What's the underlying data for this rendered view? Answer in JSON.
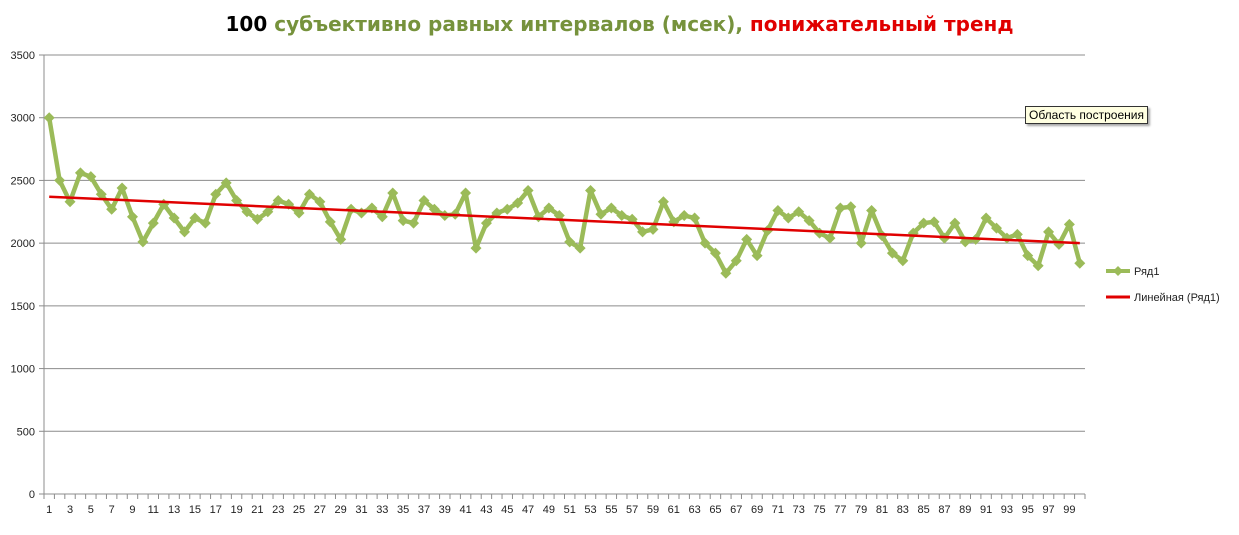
{
  "title": {
    "part1": "100",
    "part2": " субъективно равных интервалов (мсек),",
    "part3": " понижательный тренд"
  },
  "colors": {
    "title_number": "#000000",
    "title_main": "#76923c",
    "title_trend": "#e00000",
    "series": "#9bbb59",
    "trend": "#e00000",
    "grid": "#8c8c8c",
    "axis": "#8c8c8c"
  },
  "tooltip": "Область построения",
  "chart_data": {
    "type": "line",
    "title": "100 субъективно равных интервалов (мсек), понижательный тренд",
    "xlabel": "",
    "ylabel": "",
    "ylim": [
      0,
      3500
    ],
    "yticks": [
      0,
      500,
      1000,
      1500,
      2000,
      2500,
      3000,
      3500
    ],
    "x": [
      1,
      2,
      3,
      4,
      5,
      6,
      7,
      8,
      9,
      10,
      11,
      12,
      13,
      14,
      15,
      16,
      17,
      18,
      19,
      20,
      21,
      22,
      23,
      24,
      25,
      26,
      27,
      28,
      29,
      30,
      31,
      32,
      33,
      34,
      35,
      36,
      37,
      38,
      39,
      40,
      41,
      42,
      43,
      44,
      45,
      46,
      47,
      48,
      49,
      50,
      51,
      52,
      53,
      54,
      55,
      56,
      57,
      58,
      59,
      60,
      61,
      62,
      63,
      64,
      65,
      66,
      67,
      68,
      69,
      70,
      71,
      72,
      73,
      74,
      75,
      76,
      77,
      78,
      79,
      80,
      81,
      82,
      83,
      84,
      85,
      86,
      87,
      88,
      89,
      90,
      91,
      92,
      93,
      94,
      95,
      96,
      97,
      98,
      99,
      100
    ],
    "xtick_labels": [
      "1",
      "3",
      "5",
      "7",
      "9",
      "11",
      "13",
      "15",
      "17",
      "19",
      "21",
      "23",
      "25",
      "27",
      "29",
      "31",
      "33",
      "35",
      "37",
      "39",
      "41",
      "43",
      "45",
      "47",
      "49",
      "51",
      "53",
      "55",
      "57",
      "59",
      "61",
      "63",
      "65",
      "67",
      "69",
      "71",
      "73",
      "75",
      "77",
      "79",
      "81",
      "83",
      "85",
      "87",
      "89",
      "91",
      "93",
      "95",
      "97",
      "99"
    ],
    "grid": true,
    "legend_position": "right",
    "series": [
      {
        "name": "Ряд1",
        "values": [
          3000,
          2500,
          2330,
          2560,
          2530,
          2390,
          2270,
          2440,
          2210,
          2010,
          2160,
          2310,
          2200,
          2090,
          2200,
          2160,
          2390,
          2480,
          2340,
          2250,
          2190,
          2250,
          2340,
          2310,
          2240,
          2390,
          2330,
          2170,
          2030,
          2270,
          2240,
          2280,
          2210,
          2400,
          2180,
          2160,
          2340,
          2270,
          2220,
          2230,
          2400,
          1960,
          2160,
          2240,
          2270,
          2320,
          2420,
          2210,
          2280,
          2220,
          2010,
          1960,
          2420,
          2230,
          2280,
          2220,
          2190,
          2090,
          2110,
          2330,
          2170,
          2220,
          2200,
          2000,
          1920,
          1760,
          1860,
          2030,
          1900,
          2100,
          2260,
          2200,
          2250,
          2180,
          2080,
          2040,
          2280,
          2290,
          2000,
          2260,
          2060,
          1920,
          1860,
          2080,
          2160,
          2170,
          2040,
          2160,
          2010,
          2030,
          2200,
          2120,
          2040,
          2070,
          1900,
          1820,
          2090,
          1990,
          2150,
          1840
        ]
      },
      {
        "name": "Линейная (Ряд1)",
        "kind": "linear_trend",
        "values": [
          2370,
          2000
        ],
        "x": [
          1,
          100
        ]
      }
    ]
  }
}
